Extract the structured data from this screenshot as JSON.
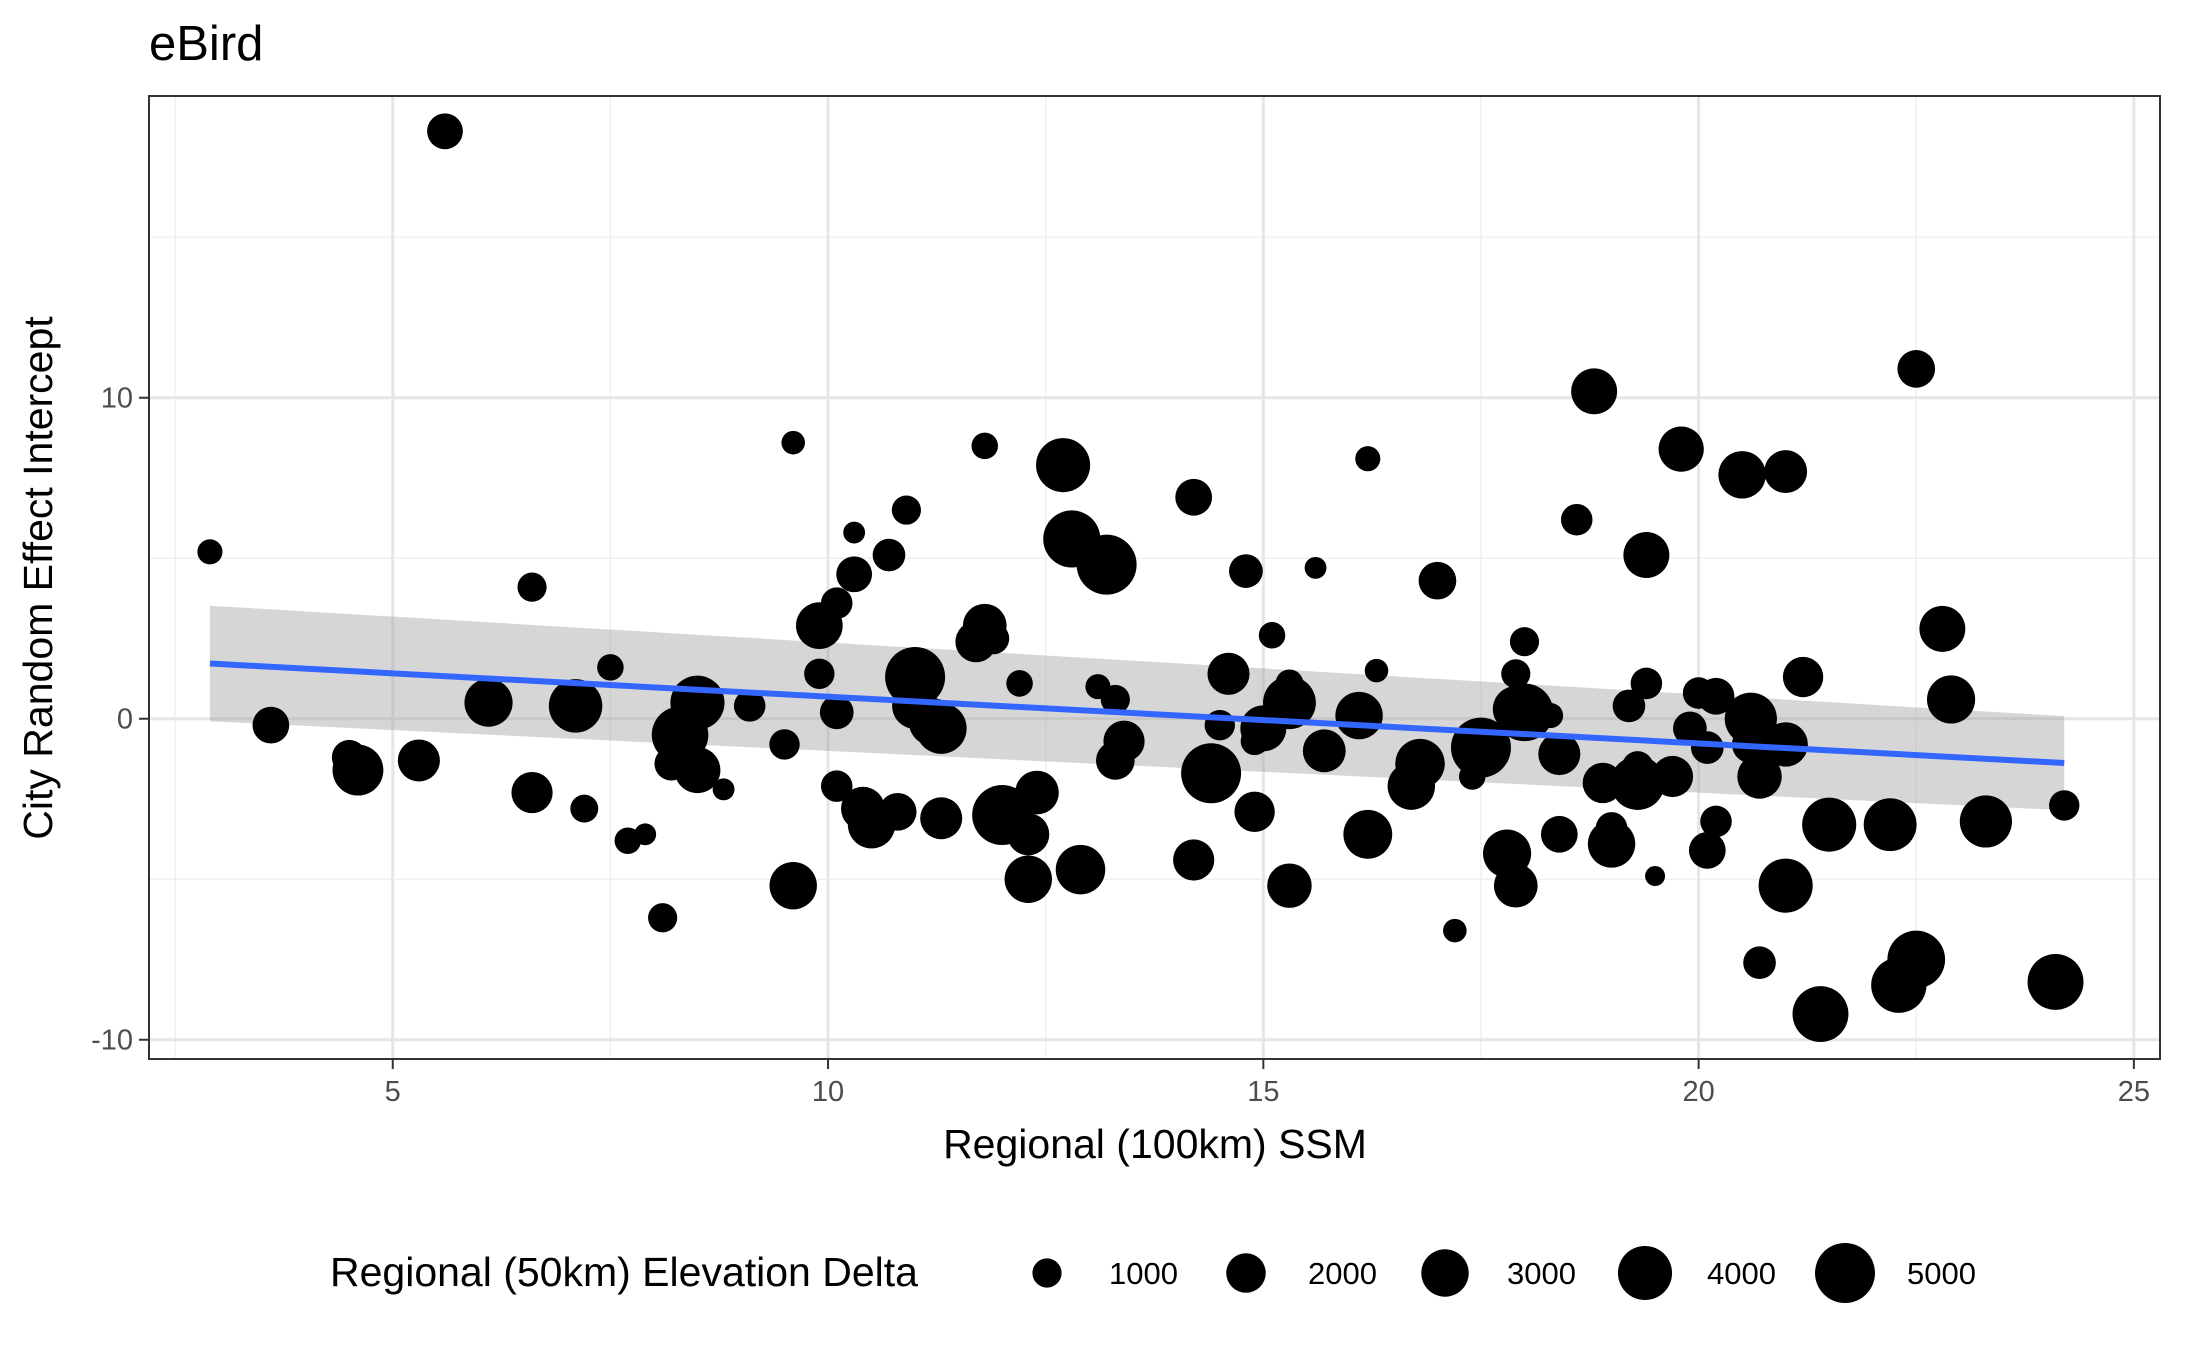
{
  "chart_data": {
    "type": "scatter",
    "title": "eBird",
    "xlabel": "Regional (100km) SSM",
    "ylabel": "City Random Effect Intercept",
    "xlim": [
      2.2,
      25.3
    ],
    "ylim": [
      -10.6,
      19.4
    ],
    "x_ticks": [
      5,
      10,
      15,
      20,
      25
    ],
    "x_tick_labels": [
      "5",
      "10",
      "15",
      "20",
      "25"
    ],
    "y_ticks": [
      -10,
      0,
      10
    ],
    "y_tick_labels": [
      "-10",
      "0",
      "10"
    ],
    "x_minor_ticks": [
      2.5,
      7.5,
      12.5,
      17.5,
      22.5
    ],
    "y_minor_ticks": [
      -5,
      5,
      15
    ],
    "grid": true,
    "size_legend": {
      "title": "Regional (50km) Elevation Delta",
      "placement": "bottom",
      "values": [
        1000,
        2000,
        3000,
        4000,
        5000
      ],
      "labels": [
        "1000",
        "2000",
        "3000",
        "4000",
        "5000"
      ]
    },
    "regression": {
      "x": [
        2.9,
        24.2
      ],
      "y": [
        1.72,
        -1.38
      ],
      "ci_lower": [
        -0.08,
        -2.85
      ],
      "ci_upper": [
        3.52,
        0.08
      ],
      "color": "#3366FF",
      "ribbon_color": "#999999"
    },
    "point_color": "#000000",
    "points": [
      {
        "x": 2.9,
        "y": 5.2,
        "size": 700
      },
      {
        "x": 3.6,
        "y": -0.2,
        "size": 1700
      },
      {
        "x": 4.5,
        "y": -1.2,
        "size": 1500
      },
      {
        "x": 4.6,
        "y": -1.6,
        "size": 3500
      },
      {
        "x": 5.3,
        "y": -1.3,
        "size": 2300
      },
      {
        "x": 5.6,
        "y": 18.3,
        "size": 1600
      },
      {
        "x": 6.1,
        "y": 0.5,
        "size": 3100
      },
      {
        "x": 6.6,
        "y": 4.1,
        "size": 1000
      },
      {
        "x": 6.6,
        "y": -2.3,
        "size": 2200
      },
      {
        "x": 7.1,
        "y": 0.4,
        "size": 3900
      },
      {
        "x": 7.2,
        "y": -2.8,
        "size": 900
      },
      {
        "x": 7.5,
        "y": 1.6,
        "size": 800
      },
      {
        "x": 7.7,
        "y": -3.8,
        "size": 800
      },
      {
        "x": 7.9,
        "y": -3.6,
        "size": 500
      },
      {
        "x": 8.1,
        "y": -6.2,
        "size": 1000
      },
      {
        "x": 8.2,
        "y": -1.4,
        "size": 1400
      },
      {
        "x": 8.3,
        "y": -0.5,
        "size": 4400
      },
      {
        "x": 8.5,
        "y": 0.5,
        "size": 4000
      },
      {
        "x": 8.5,
        "y": -1.6,
        "size": 2800
      },
      {
        "x": 8.8,
        "y": -2.2,
        "size": 500
      },
      {
        "x": 9.1,
        "y": 0.4,
        "size": 1200
      },
      {
        "x": 9.5,
        "y": -0.8,
        "size": 1100
      },
      {
        "x": 9.6,
        "y": -5.2,
        "size": 3000
      },
      {
        "x": 9.6,
        "y": 8.6,
        "size": 600
      },
      {
        "x": 9.9,
        "y": 2.9,
        "size": 2900
      },
      {
        "x": 9.9,
        "y": 1.4,
        "size": 1100
      },
      {
        "x": 10.1,
        "y": 3.6,
        "size": 1200
      },
      {
        "x": 10.1,
        "y": 0.2,
        "size": 1400
      },
      {
        "x": 10.1,
        "y": -2.1,
        "size": 1200
      },
      {
        "x": 10.3,
        "y": 4.5,
        "size": 1600
      },
      {
        "x": 10.3,
        "y": 5.8,
        "size": 500
      },
      {
        "x": 10.4,
        "y": -2.8,
        "size": 2500
      },
      {
        "x": 10.5,
        "y": -3.3,
        "size": 3000
      },
      {
        "x": 10.7,
        "y": 5.1,
        "size": 1300
      },
      {
        "x": 10.8,
        "y": -2.9,
        "size": 1800
      },
      {
        "x": 10.9,
        "y": 6.5,
        "size": 1000
      },
      {
        "x": 11.0,
        "y": 1.3,
        "size": 5000
      },
      {
        "x": 11.0,
        "y": 0.4,
        "size": 2800
      },
      {
        "x": 11.2,
        "y": -0.1,
        "size": 3000
      },
      {
        "x": 11.3,
        "y": -0.3,
        "size": 3500
      },
      {
        "x": 11.3,
        "y": -3.1,
        "size": 2300
      },
      {
        "x": 11.7,
        "y": 2.4,
        "size": 2200
      },
      {
        "x": 11.8,
        "y": 8.5,
        "size": 800
      },
      {
        "x": 11.8,
        "y": 2.9,
        "size": 2500
      },
      {
        "x": 11.9,
        "y": 2.5,
        "size": 1200
      },
      {
        "x": 12.0,
        "y": -3.0,
        "size": 5000
      },
      {
        "x": 12.2,
        "y": 1.1,
        "size": 800
      },
      {
        "x": 12.3,
        "y": -3.6,
        "size": 2300
      },
      {
        "x": 12.3,
        "y": -5.0,
        "size": 3000
      },
      {
        "x": 12.4,
        "y": -2.3,
        "size": 2500
      },
      {
        "x": 12.7,
        "y": 7.9,
        "size": 4000
      },
      {
        "x": 12.8,
        "y": 5.6,
        "size": 4500
      },
      {
        "x": 12.9,
        "y": -4.7,
        "size": 3300
      },
      {
        "x": 13.1,
        "y": 1.0,
        "size": 700
      },
      {
        "x": 13.2,
        "y": 4.8,
        "size": 5000
      },
      {
        "x": 13.3,
        "y": 0.6,
        "size": 1000
      },
      {
        "x": 13.3,
        "y": -1.3,
        "size": 1900
      },
      {
        "x": 13.4,
        "y": -0.7,
        "size": 2200
      },
      {
        "x": 14.2,
        "y": 6.9,
        "size": 1700
      },
      {
        "x": 14.2,
        "y": -4.4,
        "size": 2200
      },
      {
        "x": 14.4,
        "y": -1.7,
        "size": 5000
      },
      {
        "x": 14.5,
        "y": -0.2,
        "size": 1100
      },
      {
        "x": 14.6,
        "y": 1.4,
        "size": 2300
      },
      {
        "x": 14.8,
        "y": 4.6,
        "size": 1400
      },
      {
        "x": 14.9,
        "y": -2.9,
        "size": 2100
      },
      {
        "x": 14.9,
        "y": -0.7,
        "size": 900
      },
      {
        "x": 15.0,
        "y": -0.3,
        "size": 2800
      },
      {
        "x": 15.1,
        "y": 2.6,
        "size": 800
      },
      {
        "x": 15.3,
        "y": 1.1,
        "size": 900
      },
      {
        "x": 15.3,
        "y": 0.5,
        "size": 3800
      },
      {
        "x": 15.3,
        "y": -5.2,
        "size": 2600
      },
      {
        "x": 15.6,
        "y": 4.7,
        "size": 500
      },
      {
        "x": 15.7,
        "y": -1.0,
        "size": 2400
      },
      {
        "x": 16.1,
        "y": 0.1,
        "size": 3000
      },
      {
        "x": 16.2,
        "y": 8.1,
        "size": 700
      },
      {
        "x": 16.2,
        "y": -3.6,
        "size": 3200
      },
      {
        "x": 16.3,
        "y": 1.5,
        "size": 600
      },
      {
        "x": 16.7,
        "y": -2.1,
        "size": 3000
      },
      {
        "x": 16.8,
        "y": -1.4,
        "size": 3300
      },
      {
        "x": 17.0,
        "y": 4.3,
        "size": 1800
      },
      {
        "x": 17.2,
        "y": -6.6,
        "size": 600
      },
      {
        "x": 17.4,
        "y": -1.8,
        "size": 800
      },
      {
        "x": 17.5,
        "y": -0.9,
        "size": 5000
      },
      {
        "x": 17.8,
        "y": -4.2,
        "size": 3100
      },
      {
        "x": 17.9,
        "y": 0.3,
        "size": 2800
      },
      {
        "x": 17.9,
        "y": -5.2,
        "size": 2500
      },
      {
        "x": 17.9,
        "y": 1.4,
        "size": 1000
      },
      {
        "x": 18.0,
        "y": 0.2,
        "size": 4600
      },
      {
        "x": 18.0,
        "y": 2.4,
        "size": 1000
      },
      {
        "x": 18.3,
        "y": 0.1,
        "size": 700
      },
      {
        "x": 18.4,
        "y": -1.1,
        "size": 2300
      },
      {
        "x": 18.4,
        "y": -3.6,
        "size": 1700
      },
      {
        "x": 18.6,
        "y": 6.2,
        "size": 1200
      },
      {
        "x": 18.8,
        "y": 10.2,
        "size": 2800
      },
      {
        "x": 18.9,
        "y": -2.0,
        "size": 2100
      },
      {
        "x": 19.0,
        "y": -3.4,
        "size": 1200
      },
      {
        "x": 19.0,
        "y": -3.9,
        "size": 3000
      },
      {
        "x": 19.2,
        "y": 0.4,
        "size": 1300
      },
      {
        "x": 19.3,
        "y": -1.5,
        "size": 1200
      },
      {
        "x": 19.3,
        "y": -2.0,
        "size": 4000
      },
      {
        "x": 19.4,
        "y": 1.1,
        "size": 1200
      },
      {
        "x": 19.4,
        "y": 5.1,
        "size": 2800
      },
      {
        "x": 19.5,
        "y": -4.9,
        "size": 400
      },
      {
        "x": 19.7,
        "y": -1.8,
        "size": 2200
      },
      {
        "x": 19.8,
        "y": 8.4,
        "size": 2700
      },
      {
        "x": 19.9,
        "y": -0.3,
        "size": 1400
      },
      {
        "x": 20.0,
        "y": 0.8,
        "size": 1200
      },
      {
        "x": 20.1,
        "y": -0.9,
        "size": 1300
      },
      {
        "x": 20.1,
        "y": -4.1,
        "size": 1700
      },
      {
        "x": 20.2,
        "y": -3.2,
        "size": 1200
      },
      {
        "x": 20.2,
        "y": 0.7,
        "size": 1700
      },
      {
        "x": 20.5,
        "y": 7.6,
        "size": 3000
      },
      {
        "x": 20.6,
        "y": 0.0,
        "size": 3700
      },
      {
        "x": 20.6,
        "y": -0.8,
        "size": 1800
      },
      {
        "x": 20.7,
        "y": -1.8,
        "size": 2600
      },
      {
        "x": 20.7,
        "y": -7.6,
        "size": 1300
      },
      {
        "x": 21.0,
        "y": -5.2,
        "size": 4000
      },
      {
        "x": 21.0,
        "y": 7.7,
        "size": 2400
      },
      {
        "x": 21.0,
        "y": -0.8,
        "size": 2600
      },
      {
        "x": 21.2,
        "y": 1.3,
        "size": 2100
      },
      {
        "x": 21.4,
        "y": -9.2,
        "size": 4300
      },
      {
        "x": 21.5,
        "y": -3.3,
        "size": 4000
      },
      {
        "x": 22.2,
        "y": -3.3,
        "size": 3800
      },
      {
        "x": 22.3,
        "y": -8.3,
        "size": 4200
      },
      {
        "x": 22.5,
        "y": 10.9,
        "size": 1800
      },
      {
        "x": 22.5,
        "y": -7.5,
        "size": 4600
      },
      {
        "x": 22.8,
        "y": 2.8,
        "size": 2800
      },
      {
        "x": 22.9,
        "y": 0.6,
        "size": 3100
      },
      {
        "x": 23.3,
        "y": -3.2,
        "size": 3700
      },
      {
        "x": 24.1,
        "y": -8.2,
        "size": 4300
      },
      {
        "x": 24.2,
        "y": -2.7,
        "size": 1100
      }
    ]
  }
}
